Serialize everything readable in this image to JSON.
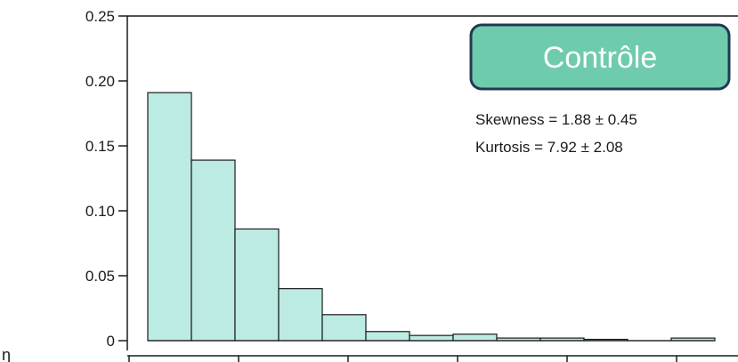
{
  "chart_data": {
    "type": "bar",
    "histogram": true,
    "title": "",
    "xlabel": "",
    "ylabel": "",
    "ylim": [
      0,
      0.25
    ],
    "yticks": [
      "0",
      "0.05",
      "0.10",
      "0.15",
      "0.20",
      "0.25"
    ],
    "ytick_values": [
      0,
      0.05,
      0.1,
      0.15,
      0.2,
      0.25
    ],
    "xtick_count": 6,
    "grid": false,
    "legend": "none",
    "values": [
      0.191,
      0.139,
      0.086,
      0.04,
      0.02,
      0.007,
      0.004,
      0.005,
      0.002,
      0.002,
      0.001,
      0.0,
      0.002
    ],
    "bar_fill": "#bcebe3",
    "bar_stroke": "#1a1a1a",
    "badge": {
      "label": "Contrôle",
      "fill": "#6fcbad",
      "border": "#1f3a52"
    },
    "annotations": {
      "skewness": "Skewness = 1.88 ± 0.45",
      "kurtosis": "Kurtosis = 7.92 ± 2.08"
    },
    "edge_glyph": "ŋ"
  }
}
